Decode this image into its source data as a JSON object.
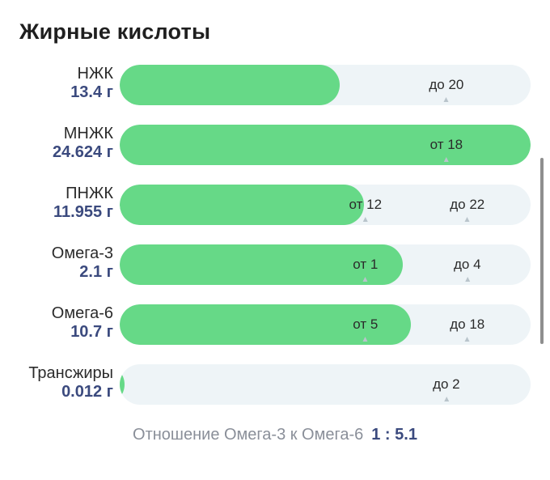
{
  "title": "Жирные кислоты",
  "rows": [
    {
      "name": "НЖК",
      "amount": "13.4 г",
      "fill": 0.535,
      "markers": [
        {
          "text": "до 20",
          "pos": 0.795
        }
      ]
    },
    {
      "name": "МНЖК",
      "amount": "24.624 г",
      "fill": 1.0,
      "markers": [
        {
          "text": "от 18",
          "pos": 0.795
        }
      ]
    },
    {
      "name": "ПНЖК",
      "amount": "11.955 г",
      "fill": 0.595,
      "markers": [
        {
          "text": "от 12",
          "pos": 0.598
        },
        {
          "text": "до 22",
          "pos": 0.846
        }
      ]
    },
    {
      "name": "Омега-3",
      "amount": "2.1 г",
      "fill": 0.689,
      "markers": [
        {
          "text": "от 1",
          "pos": 0.598
        },
        {
          "text": "до 4",
          "pos": 0.846
        }
      ]
    },
    {
      "name": "Омега-6",
      "amount": "10.7 г",
      "fill": 0.709,
      "markers": [
        {
          "text": "от 5",
          "pos": 0.598
        },
        {
          "text": "до 18",
          "pos": 0.846
        }
      ]
    },
    {
      "name": "Трансжиры",
      "amount": "0.012 г",
      "fill": 0.012,
      "markers": [
        {
          "text": "до 2",
          "pos": 0.795
        }
      ]
    }
  ],
  "ratio": {
    "label": "Отношение Омега-3 к Омега-6",
    "value": "1 : 5.1"
  },
  "colors": {
    "fill": "#66d987",
    "track": "#eef4f7",
    "amount": "#3b4a7e"
  }
}
